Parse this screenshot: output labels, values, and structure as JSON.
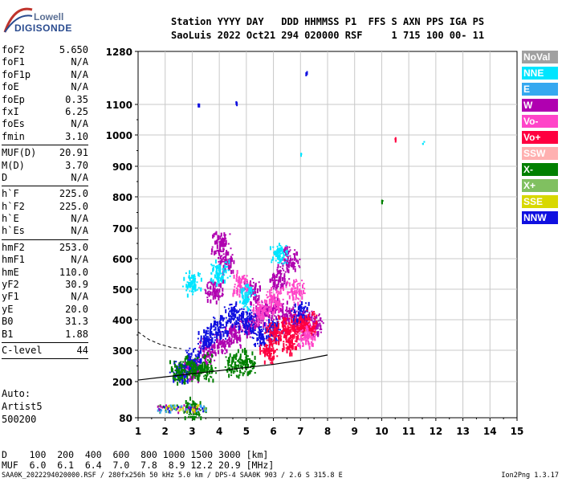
{
  "logo": {
    "line1": "Lowell",
    "line2": "DIGISONDE"
  },
  "header": {
    "line1": "Station YYYY DAY   DDD HHMMSS P1  FFS S AXN PPS IGA PS",
    "line2": "SaoLuis 2022 Oct21 294 020000 RSF     1 715 100 00- 11"
  },
  "params": {
    "group1": [
      {
        "label": "foF2",
        "value": "5.650"
      },
      {
        "label": "foF1",
        "value": "N/A"
      },
      {
        "label": "foF1p",
        "value": "N/A"
      },
      {
        "label": "foE",
        "value": "N/A"
      },
      {
        "label": "foEp",
        "value": "0.35"
      },
      {
        "label": "fxI",
        "value": "6.25"
      },
      {
        "label": "foEs",
        "value": "N/A"
      },
      {
        "label": "fmin",
        "value": "3.10"
      }
    ],
    "group2": [
      {
        "label": "MUF(D)",
        "value": "20.91"
      },
      {
        "label": "M(D)",
        "value": "3.70"
      },
      {
        "label": "D",
        "value": "N/A"
      }
    ],
    "group3": [
      {
        "label": "h`F",
        "value": "225.0"
      },
      {
        "label": "h`F2",
        "value": "225.0"
      },
      {
        "label": "h`E",
        "value": "N/A"
      },
      {
        "label": "h`Es",
        "value": "N/A"
      }
    ],
    "group4": [
      {
        "label": "hmF2",
        "value": "253.0"
      },
      {
        "label": "hmF1",
        "value": "N/A"
      },
      {
        "label": "hmE",
        "value": "110.0"
      },
      {
        "label": "yF2",
        "value": "30.9"
      },
      {
        "label": "yF1",
        "value": "N/A"
      },
      {
        "label": "yE",
        "value": "20.0"
      },
      {
        "label": "B0",
        "value": "31.3"
      },
      {
        "label": "B1",
        "value": "1.88"
      }
    ],
    "group5": [
      {
        "label": "C-level",
        "value": "44"
      }
    ]
  },
  "auto": {
    "line1": "Auto:",
    "line2": "Artist5",
    "line3": "500200"
  },
  "legend": [
    {
      "label": "NoVal",
      "color": "#a0a0a0"
    },
    {
      "label": "NNE",
      "color": "#00e5ff"
    },
    {
      "label": "E",
      "color": "#35a8f0"
    },
    {
      "label": "W",
      "color": "#b000b0"
    },
    {
      "label": "Vo-",
      "color": "#ff44c8"
    },
    {
      "label": "Vo+",
      "color": "#ff0040"
    },
    {
      "label": "SSW",
      "color": "#ffb0b0"
    },
    {
      "label": "X-",
      "color": "#008000"
    },
    {
      "label": "X+",
      "color": "#80c060"
    },
    {
      "label": "SSE",
      "color": "#d8d800"
    },
    {
      "label": "NNW",
      "color": "#1010e0"
    }
  ],
  "muf": {
    "line1": "D    100  200  400  600  800 1000 1500 3000 [km]",
    "line2": "MUF  6.0  6.1  6.4  7.0  7.8  8.9 12.2 20.9 [MHz]"
  },
  "footer": {
    "left": "SAA0K_2022294020000.RSF / 280fx256h 50 kHz 5.0 km / DPS-4 SAA0K 903 / 2.6 S 315.8 E",
    "right": "Ion2Png 1.3.17"
  },
  "chart_data": {
    "type": "scatter",
    "x_ticks": [
      "1",
      "2",
      "3",
      "4",
      "5",
      "6",
      "7",
      "8",
      "9",
      "10",
      "11",
      "12",
      "13",
      "14",
      "15"
    ],
    "y_ticks": [
      "80",
      "200",
      "300",
      "400",
      "500",
      "600",
      "700",
      "800",
      "900",
      "1000",
      "1100",
      "1280"
    ],
    "xlim": [
      1,
      15
    ],
    "ylim": [
      80,
      1280
    ],
    "grid": true,
    "traces": [
      {
        "name": "W",
        "points": [
          [
            3.0,
            245
          ],
          [
            3.5,
            300
          ],
          [
            4.0,
            330
          ],
          [
            4.5,
            360
          ],
          [
            5.0,
            380
          ],
          [
            5.5,
            420
          ],
          [
            6.0,
            440
          ],
          [
            6.5,
            420
          ],
          [
            7.0,
            400
          ],
          [
            7.5,
            390
          ],
          [
            4.2,
            600
          ],
          [
            4.0,
            650
          ],
          [
            3.8,
            500
          ],
          [
            5.2,
            500
          ],
          [
            6.2,
            540
          ],
          [
            6.6,
            600
          ]
        ]
      },
      {
        "name": "NNW",
        "points": [
          [
            2.5,
            230
          ],
          [
            3.0,
            270
          ],
          [
            3.5,
            340
          ],
          [
            4.0,
            380
          ],
          [
            4.5,
            420
          ],
          [
            5.0,
            400
          ],
          [
            5.5,
            350
          ],
          [
            6.0,
            370
          ],
          [
            7.0,
            420
          ],
          [
            7.2,
            1210
          ],
          [
            3.2,
            1100
          ],
          [
            4.6,
            1110
          ]
        ]
      },
      {
        "name": "Vo+",
        "points": [
          [
            6.0,
            360
          ],
          [
            6.5,
            380
          ],
          [
            7.0,
            380
          ],
          [
            7.3,
            390
          ],
          [
            5.8,
            300
          ],
          [
            6.6,
            330
          ],
          [
            10.5,
            990
          ]
        ]
      },
      {
        "name": "Vo-",
        "points": [
          [
            5.5,
            430
          ],
          [
            6.0,
            470
          ],
          [
            6.8,
            500
          ],
          [
            7.2,
            350
          ],
          [
            4.8,
            520
          ]
        ]
      },
      {
        "name": "X-",
        "points": [
          [
            2.5,
            235
          ],
          [
            3.0,
            245
          ],
          [
            3.5,
            250
          ],
          [
            4.5,
            260
          ],
          [
            5.0,
            265
          ],
          [
            10.0,
            790
          ],
          [
            3.0,
            110
          ]
        ]
      },
      {
        "name": "NNE",
        "points": [
          [
            3.0,
            520
          ],
          [
            4.0,
            560
          ],
          [
            5.0,
            480
          ],
          [
            6.2,
            620
          ],
          [
            7.0,
            940
          ],
          [
            11.5,
            975
          ]
        ]
      }
    ],
    "fmin_curve": [
      [
        1.0,
        205
      ],
      [
        2.0,
        215
      ],
      [
        3.0,
        225
      ],
      [
        4.0,
        235
      ],
      [
        5.0,
        245
      ],
      [
        6.0,
        255
      ],
      [
        7.0,
        268
      ],
      [
        8.0,
        285
      ]
    ],
    "dashed_curve": [
      [
        1.0,
        360
      ],
      [
        1.4,
        335
      ],
      [
        1.8,
        320
      ],
      [
        2.2,
        310
      ],
      [
        2.6,
        305
      ]
    ]
  }
}
